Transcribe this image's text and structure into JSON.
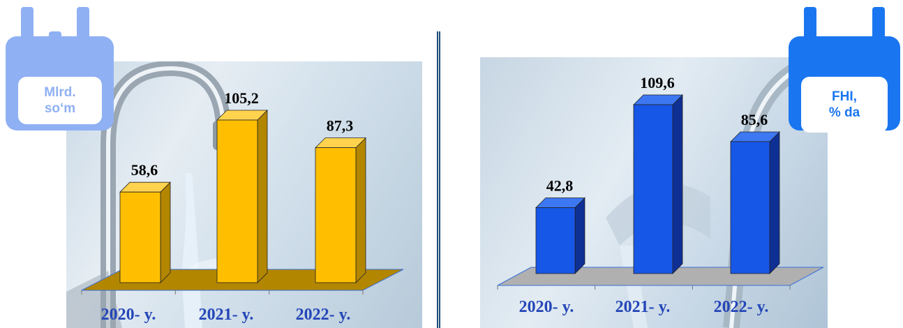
{
  "left_badge": {
    "text": "Mlrd.\nso‘m",
    "color": "#8fb0f3",
    "icon": "calendar-icon"
  },
  "right_badge": {
    "text": "FHI,\n% da",
    "color": "#1a76f0",
    "icon": "calendar-icon"
  },
  "chart_data": [
    {
      "type": "bar",
      "categories": [
        "2020- y.",
        "2021- y.",
        "2022- y."
      ],
      "values": [
        58.6,
        105.2,
        87.3
      ],
      "value_labels": [
        "58,6",
        "105,2",
        "87,3"
      ],
      "unit": "Mlrd. so‘m",
      "title": "",
      "xlabel": "",
      "ylabel": "",
      "ylim": [
        0,
        105.2
      ],
      "grid": false,
      "colors": {
        "front": "#ffbf00",
        "side": "#b38600",
        "top": "#ffd34d",
        "floor": "#b38600"
      }
    },
    {
      "type": "bar",
      "categories": [
        "2020- y.",
        "2021- y.",
        "2022- y."
      ],
      "values": [
        42.8,
        109.6,
        85.6
      ],
      "value_labels": [
        "42,8",
        "109,6",
        "85,6"
      ],
      "unit": "FHI, % da",
      "title": "",
      "xlabel": "",
      "ylabel": "",
      "ylim": [
        0,
        109.6
      ],
      "grid": false,
      "colors": {
        "front": "#1757e8",
        "side": "#0e2f94",
        "top": "#3d78f2",
        "floor": "#b0b0b0"
      }
    }
  ]
}
